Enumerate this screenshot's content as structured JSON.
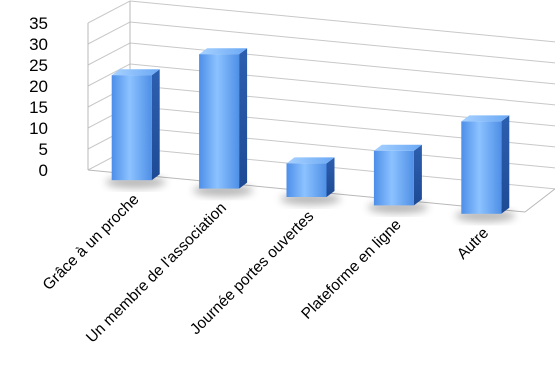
{
  "chart_data": {
    "type": "bar",
    "title": "",
    "xlabel": "",
    "ylabel": "",
    "ylim": [
      0,
      35
    ],
    "y_ticks": [
      0,
      5,
      10,
      15,
      20,
      25,
      30,
      35
    ],
    "grid": true,
    "legend": "none",
    "categories": [
      "Grâce à un proche",
      "Un membre de l'association",
      "Journée portes ouvertes",
      "Plateforme en ligne",
      "Autre"
    ],
    "values": [
      25,
      32,
      8,
      13,
      22
    ],
    "bar_color": "#5b9df2"
  }
}
